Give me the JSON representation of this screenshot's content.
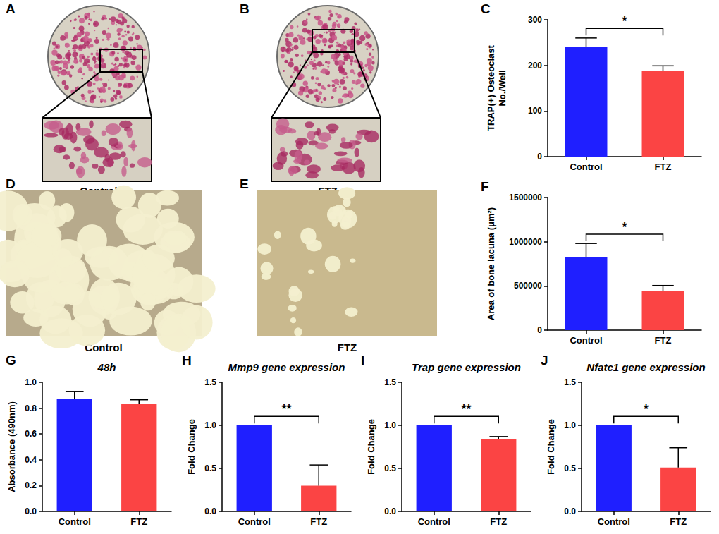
{
  "images": [
    {
      "letter": "A",
      "caption": "Control"
    },
    {
      "letter": "B",
      "caption": "FTZ"
    },
    {
      "letter": "D",
      "caption": "Control"
    },
    {
      "letter": "E",
      "caption": "FTZ"
    }
  ],
  "chart_data": [
    {
      "letter": "C",
      "type": "bar",
      "ylabel": "TRAP(+) Osteoclast\nNo./Well",
      "categories": [
        "Control",
        "FTZ"
      ],
      "values": [
        240,
        187
      ],
      "error": [
        20,
        12
      ],
      "colors": [
        "#1f1fff",
        "#fb4444"
      ],
      "ylim": [
        0,
        300
      ],
      "yticks": [
        0,
        100,
        200,
        300
      ],
      "grid": false,
      "annotation": "*"
    },
    {
      "letter": "F",
      "type": "bar",
      "ylabel": "Area of bone lacuna (μm²)",
      "categories": [
        "Control",
        "FTZ"
      ],
      "values": [
        825000,
        440000
      ],
      "error": [
        155000,
        65000
      ],
      "colors": [
        "#1f1fff",
        "#fb4444"
      ],
      "ylim": [
        0,
        1500000
      ],
      "yticks": [
        0,
        500000,
        1000000,
        1500000
      ],
      "grid": false,
      "annotation": "*"
    },
    {
      "letter": "G",
      "type": "bar",
      "title": "48h",
      "ylabel": "Absorbance (490nm)",
      "categories": [
        "Control",
        "FTZ"
      ],
      "values": [
        0.87,
        0.83
      ],
      "error": [
        0.06,
        0.035
      ],
      "colors": [
        "#1f1fff",
        "#fb4444"
      ],
      "ylim": [
        0,
        1.0
      ],
      "yticks": [
        {
          "value": 0,
          "label": "0.0"
        },
        0.2,
        0.4,
        0.6,
        0.8,
        {
          "value": 1.0,
          "label": "1.0"
        }
      ],
      "grid": false
    },
    {
      "letter": "H",
      "type": "bar",
      "title": "Mmp9 gene expression",
      "ylabel": "Fold Change",
      "categories": [
        "Control",
        "FTZ"
      ],
      "values": [
        1.0,
        0.3
      ],
      "error": [
        0,
        0.24
      ],
      "colors": [
        "#1f1fff",
        "#fb4444"
      ],
      "ylim": [
        0,
        1.5
      ],
      "yticks": [
        {
          "value": 0,
          "label": "0.0"
        },
        0.5,
        {
          "value": 1.0,
          "label": "1.0"
        },
        1.5
      ],
      "grid": false,
      "annotation": "**"
    },
    {
      "letter": "I",
      "type": "bar",
      "title": "Trap gene expression",
      "ylabel": "Fold Change",
      "categories": [
        "Control",
        "FTZ"
      ],
      "values": [
        1.0,
        0.845
      ],
      "error": [
        0,
        0.025
      ],
      "colors": [
        "#1f1fff",
        "#fb4444"
      ],
      "ylim": [
        0,
        1.5
      ],
      "yticks": [
        {
          "value": 0,
          "label": "0.0"
        },
        0.5,
        {
          "value": 1.0,
          "label": "1.0"
        },
        1.5
      ],
      "grid": false,
      "annotation": "**"
    },
    {
      "letter": "J",
      "type": "bar",
      "title": "Nfatc1 gene expression",
      "ylabel": "Fold Change",
      "categories": [
        "Control",
        "FTZ"
      ],
      "values": [
        1.0,
        0.51
      ],
      "error": [
        0,
        0.23
      ],
      "colors": [
        "#1f1fff",
        "#fb4444"
      ],
      "ylim": [
        0,
        1.5
      ],
      "yticks": [
        {
          "value": 0,
          "label": "0.0"
        },
        0.5,
        {
          "value": 1.0,
          "label": "1.0"
        },
        1.5
      ],
      "grid": false,
      "annotation": "*"
    }
  ]
}
